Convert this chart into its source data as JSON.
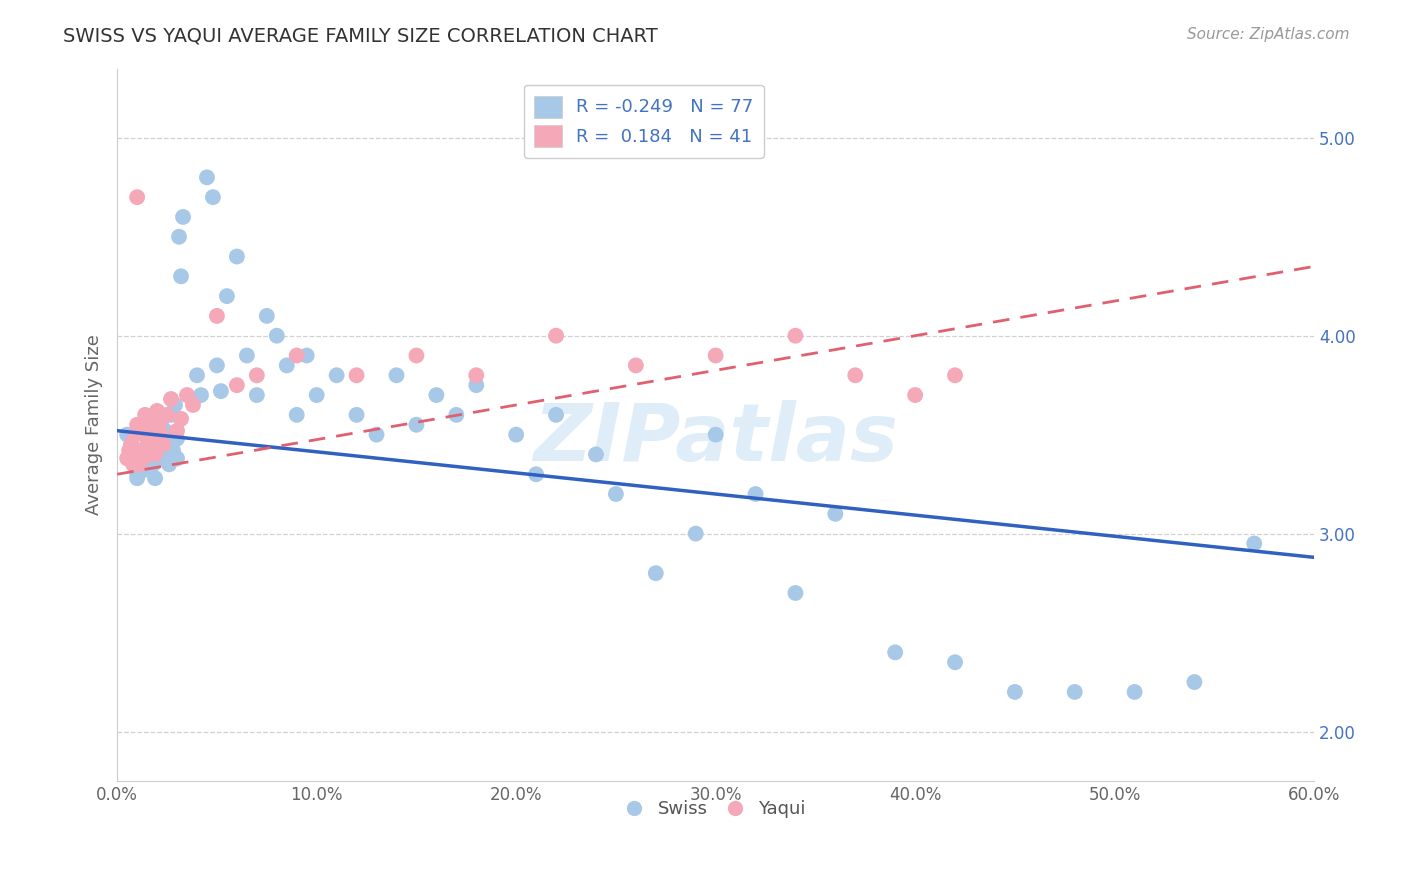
{
  "title": "SWISS VS YAQUI AVERAGE FAMILY SIZE CORRELATION CHART",
  "source_text": "Source: ZipAtlas.com",
  "ylabel": "Average Family Size",
  "xlim": [
    0.0,
    0.6
  ],
  "ylim": [
    1.75,
    5.35
  ],
  "yticks": [
    2.0,
    3.0,
    4.0,
    5.0
  ],
  "ytick_labels": [
    "2.00",
    "3.00",
    "4.00",
    "5.00"
  ],
  "xtick_labels": [
    "0.0%",
    "10.0%",
    "20.0%",
    "30.0%",
    "40.0%",
    "50.0%",
    "60.0%"
  ],
  "xticks": [
    0.0,
    0.1,
    0.2,
    0.3,
    0.4,
    0.5,
    0.6
  ],
  "swiss_color": "#a8c8e8",
  "yaqui_color": "#f4a8b8",
  "swiss_line_color": "#3060c0",
  "yaqui_line_color": "#e06070",
  "R_swiss": -0.249,
  "N_swiss": 77,
  "R_yaqui": 0.184,
  "N_yaqui": 41,
  "legend_text_color": "#4472c4",
  "watermark": "ZIPatlas",
  "background_color": "#ffffff",
  "grid_color": "#cccccc",
  "swiss_line_x0": 0.0,
  "swiss_line_x1": 0.6,
  "swiss_line_y0": 3.52,
  "swiss_line_y1": 2.88,
  "yaqui_line_x0": 0.0,
  "yaqui_line_x1": 0.6,
  "yaqui_line_y0": 3.3,
  "yaqui_line_y1": 4.35,
  "swiss_x": [
    0.005,
    0.007,
    0.008,
    0.01,
    0.01,
    0.01,
    0.011,
    0.012,
    0.012,
    0.013,
    0.014,
    0.015,
    0.015,
    0.016,
    0.017,
    0.018,
    0.018,
    0.019,
    0.02,
    0.02,
    0.021,
    0.022,
    0.022,
    0.023,
    0.024,
    0.025,
    0.026,
    0.027,
    0.028,
    0.029,
    0.03,
    0.03,
    0.031,
    0.032,
    0.033,
    0.04,
    0.042,
    0.045,
    0.048,
    0.05,
    0.052,
    0.055,
    0.06,
    0.065,
    0.07,
    0.075,
    0.08,
    0.085,
    0.09,
    0.095,
    0.1,
    0.11,
    0.12,
    0.13,
    0.14,
    0.15,
    0.16,
    0.17,
    0.18,
    0.2,
    0.21,
    0.22,
    0.24,
    0.25,
    0.27,
    0.29,
    0.3,
    0.32,
    0.34,
    0.36,
    0.39,
    0.42,
    0.45,
    0.48,
    0.51,
    0.54,
    0.57
  ],
  "swiss_y": [
    3.5,
    3.45,
    3.4,
    3.35,
    3.3,
    3.28,
    3.42,
    3.38,
    3.35,
    3.32,
    3.5,
    3.42,
    3.38,
    3.45,
    3.4,
    3.52,
    3.35,
    3.28,
    3.6,
    3.42,
    3.45,
    3.55,
    3.38,
    3.48,
    3.52,
    3.4,
    3.35,
    3.6,
    3.42,
    3.65,
    3.48,
    3.38,
    4.5,
    4.3,
    4.6,
    3.8,
    3.7,
    4.8,
    4.7,
    3.85,
    3.72,
    4.2,
    4.4,
    3.9,
    3.7,
    4.1,
    4.0,
    3.85,
    3.6,
    3.9,
    3.7,
    3.8,
    3.6,
    3.5,
    3.8,
    3.55,
    3.7,
    3.6,
    3.75,
    3.5,
    3.3,
    3.6,
    3.4,
    3.2,
    2.8,
    3.0,
    3.5,
    3.2,
    2.7,
    3.1,
    2.4,
    2.35,
    2.2,
    2.2,
    2.2,
    2.25,
    2.95
  ],
  "yaqui_x": [
    0.005,
    0.006,
    0.007,
    0.008,
    0.009,
    0.01,
    0.01,
    0.011,
    0.012,
    0.013,
    0.014,
    0.015,
    0.016,
    0.017,
    0.018,
    0.019,
    0.02,
    0.021,
    0.022,
    0.023,
    0.025,
    0.027,
    0.03,
    0.032,
    0.035,
    0.038,
    0.05,
    0.06,
    0.07,
    0.09,
    0.12,
    0.15,
    0.18,
    0.22,
    0.26,
    0.3,
    0.34,
    0.37,
    0.4,
    0.42,
    0.01
  ],
  "yaqui_y": [
    3.38,
    3.42,
    3.45,
    3.35,
    3.5,
    3.4,
    3.55,
    3.35,
    3.42,
    3.38,
    3.6,
    3.48,
    3.52,
    3.55,
    3.45,
    3.4,
    3.62,
    3.55,
    3.5,
    3.45,
    3.6,
    3.68,
    3.52,
    3.58,
    3.7,
    3.65,
    4.1,
    3.75,
    3.8,
    3.9,
    3.8,
    3.9,
    3.8,
    4.0,
    3.85,
    3.9,
    4.0,
    3.8,
    3.7,
    3.8,
    4.7
  ]
}
